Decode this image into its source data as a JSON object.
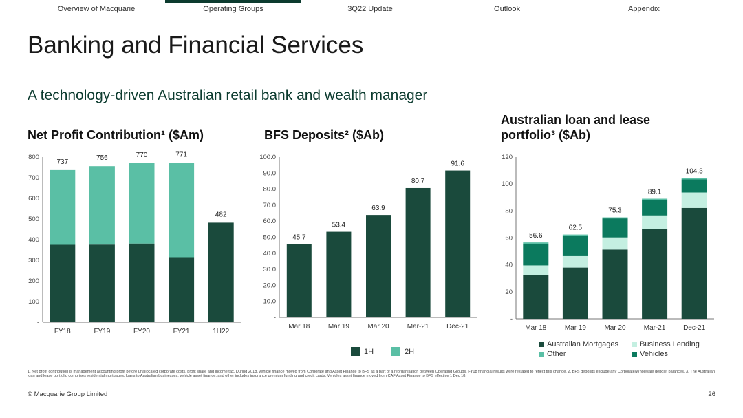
{
  "nav": {
    "items": [
      "Overview of Macquarie",
      "Operating Groups",
      "3Q22 Update",
      "Outlook",
      "Appendix"
    ],
    "active_index": 1
  },
  "page_title": "Banking and Financial Services",
  "subtitle": "A technology-driven Australian retail bank and wealth manager",
  "colors": {
    "dark": "#1a4a3c",
    "light": "#5abfa5",
    "mid": "#0b7a5e",
    "pale": "#c4efe1",
    "accent": "#0c3b2f"
  },
  "chart_data": [
    {
      "id": "npc",
      "type": "bar",
      "stacked": true,
      "title": "Net Profit Contribution¹ ($Am)",
      "categories": [
        "FY18",
        "FY19",
        "FY20",
        "FY21",
        "1H22"
      ],
      "series": [
        {
          "name": "1H",
          "values": [
            375,
            376,
            381,
            315,
            482
          ]
        },
        {
          "name": "2H",
          "values": [
            362,
            380,
            389,
            456,
            0
          ]
        }
      ],
      "totals": [
        "737",
        "756",
        "770",
        "771",
        "482"
      ],
      "yticks": [
        "-",
        "100",
        "200",
        "300",
        "400",
        "500",
        "600",
        "700",
        "800"
      ],
      "ylim": [
        0,
        800
      ]
    },
    {
      "id": "dep",
      "type": "bar",
      "title": "BFS Deposits² ($Ab)",
      "categories": [
        "Mar 18",
        "Mar 19",
        "Mar 20",
        "Mar-21",
        "Dec-21"
      ],
      "values": [
        45.7,
        53.4,
        63.9,
        80.7,
        91.6
      ],
      "labels": [
        "45.7",
        "53.4",
        "63.9",
        "80.7",
        "91.6"
      ],
      "yticks": [
        "-",
        "10.0",
        "20.0",
        "30.0",
        "40.0",
        "50.0",
        "60.0",
        "70.0",
        "80.0",
        "90.0",
        "100.0"
      ],
      "ylim": [
        0,
        100
      ]
    },
    {
      "id": "loan",
      "type": "bar",
      "stacked": true,
      "title": "Australian loan and lease portfolio³ ($Ab)",
      "categories": [
        "Mar 18",
        "Mar 19",
        "Mar 20",
        "Mar-21",
        "Dec-21"
      ],
      "series": [
        {
          "name": "Australian Mortgages",
          "values": [
            32.4,
            38.0,
            51.4,
            66.5,
            82.3
          ]
        },
        {
          "name": "Business Lending",
          "values": [
            7.2,
            8.5,
            9.0,
            10.2,
            11.4
          ]
        },
        {
          "name": "Vehicles",
          "values": [
            16.0,
            15.3,
            14.1,
            11.5,
            9.7
          ]
        },
        {
          "name": "Other",
          "values": [
            1.0,
            0.7,
            0.8,
            0.9,
            0.9
          ]
        }
      ],
      "totals": [
        "56.6",
        "62.5",
        "75.3",
        "89.1",
        "104.3"
      ],
      "yticks": [
        "-",
        "20",
        "40",
        "60",
        "80",
        "100",
        "120"
      ],
      "ylim": [
        0,
        120
      ]
    }
  ],
  "legend_halves": [
    "1H",
    "2H"
  ],
  "legend_loan": {
    "mortgages": "Australian Mortgages",
    "business": "Business Lending",
    "other": "Other",
    "vehicles": "Vehicles"
  },
  "footnote": "1. Net profit contribution is management accounting profit before unallocated corporate costs, profit share and income tax. During 2018, vehicle finance moved from Corporate and Asset Finance to BFS as a part of a reorganisation between Operating Groups. FY18 financial results were restated to reflect this change. 2. BFS deposits exclude any Corporate/Wholesale deposit balances. 3. The Australian loan and lease portfolio comprises residential mortgages, loans to Australian businesses, vehicle asset finance, and other includes insurance premium funding and credit cards. Vehicles asset finance moved from CAF Asset Finance to BFS effective 1 Dec 18.",
  "copyright": "© Macquarie Group Limited",
  "page_number": "26"
}
